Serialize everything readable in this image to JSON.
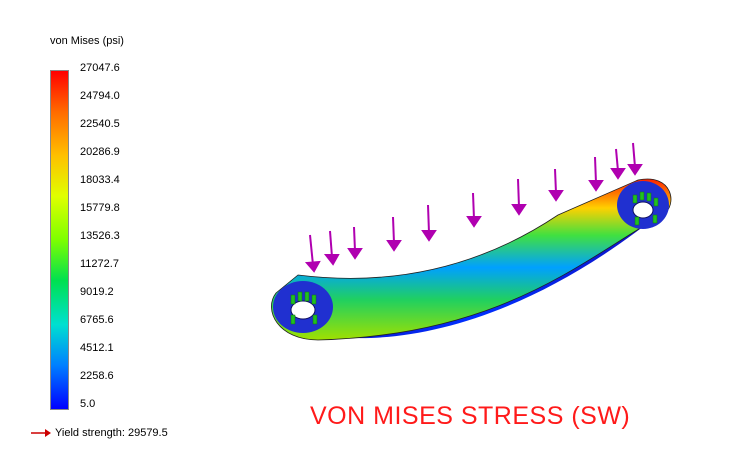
{
  "legend": {
    "title": "von Mises (psi)",
    "ticks": [
      "27047.6",
      "24794.0",
      "22540.5",
      "20286.9",
      "18033.4",
      "15779.8",
      "13526.3",
      "11272.7",
      "9019.2",
      "6765.6",
      "4512.1",
      "2258.6",
      "5.0"
    ],
    "yield_label": "Yield strength: 29579.5",
    "yield_arrow_color": "#cc0000"
  },
  "caption": "VON MISES STRESS (SW)",
  "colors": {
    "caption": "#ff1a1a",
    "load_arrows": "#b000b0",
    "fixtures": "#20c020"
  }
}
